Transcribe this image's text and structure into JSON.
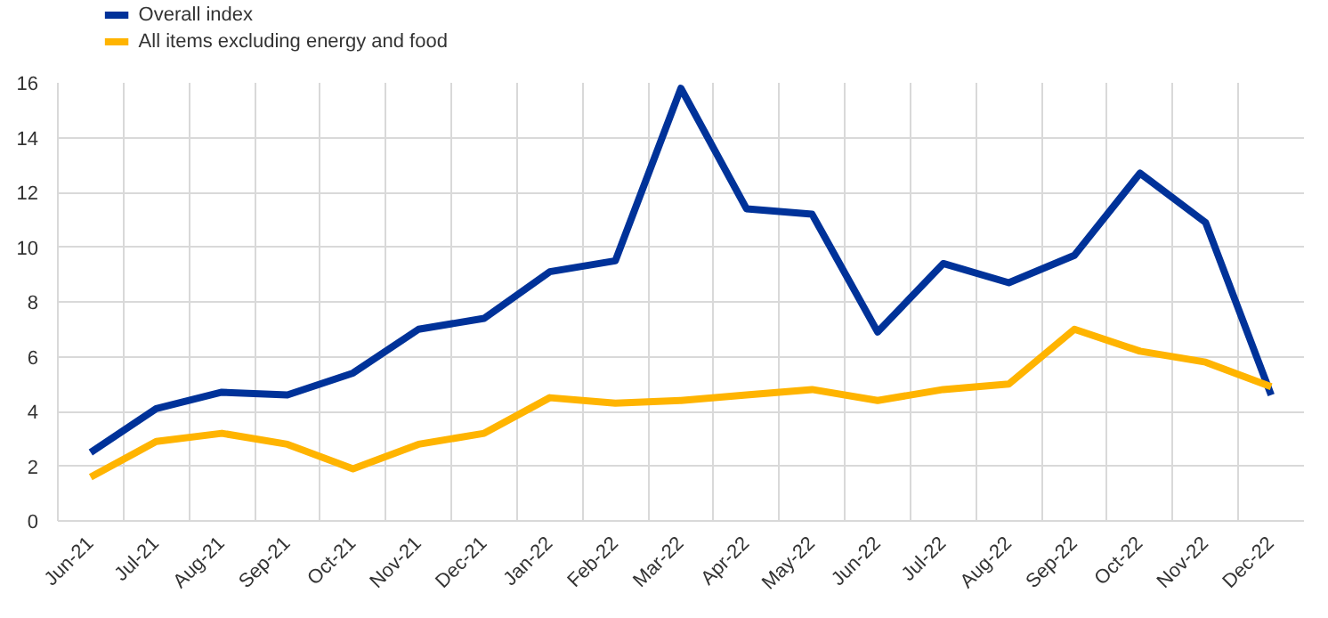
{
  "chart_data": {
    "type": "line",
    "categories": [
      "Jun-21",
      "Jul-21",
      "Aug-21",
      "Sep-21",
      "Oct-21",
      "Nov-21",
      "Dec-21",
      "Jan-22",
      "Feb-22",
      "Mar-22",
      "Apr-22",
      "May-22",
      "Jun-22",
      "Jul-22",
      "Aug-22",
      "Sep-22",
      "Oct-22",
      "Nov-22",
      "Dec-22"
    ],
    "series": [
      {
        "name": "Overall index",
        "color": "#003299",
        "values": [
          2.5,
          4.1,
          4.7,
          4.6,
          5.4,
          7.0,
          7.4,
          9.1,
          9.5,
          15.8,
          11.4,
          11.2,
          6.9,
          9.4,
          8.7,
          9.7,
          12.7,
          10.9,
          4.6
        ]
      },
      {
        "name": "All items excluding energy and food",
        "color": "#ffb400",
        "values": [
          1.6,
          2.9,
          3.2,
          2.8,
          1.9,
          2.8,
          3.2,
          4.5,
          4.3,
          4.4,
          4.6,
          4.8,
          4.4,
          4.8,
          5.0,
          7.0,
          6.2,
          5.8,
          4.9
        ]
      }
    ],
    "ylim": [
      0,
      16
    ],
    "yticks": [
      0,
      2,
      4,
      6,
      8,
      10,
      12,
      14,
      16
    ],
    "grid": true,
    "legend": "top left",
    "marker": "none",
    "line_style": "solid"
  }
}
